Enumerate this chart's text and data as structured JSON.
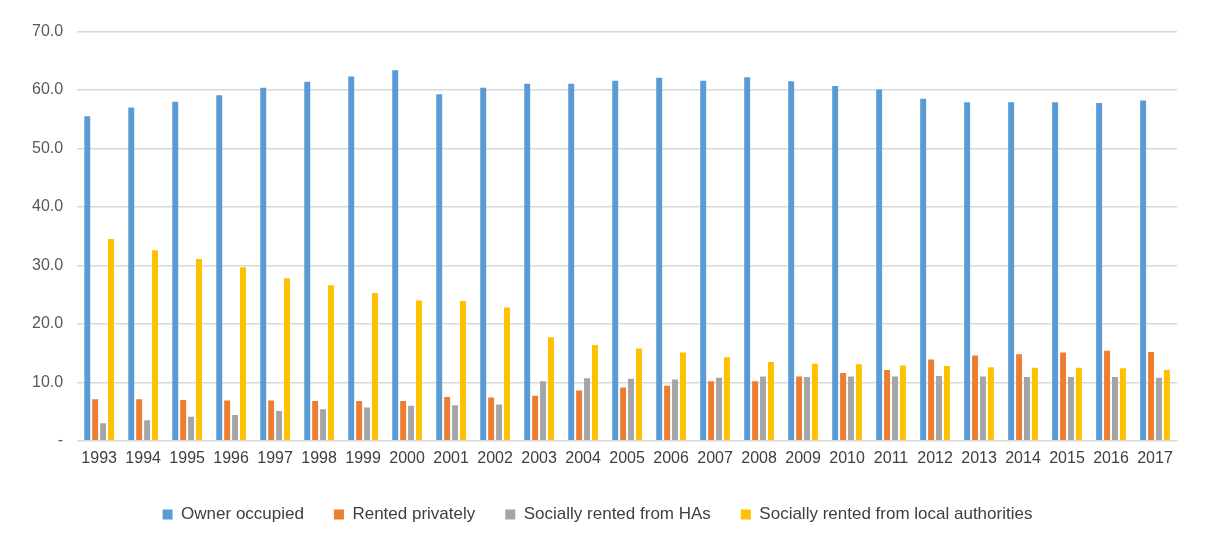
{
  "chart_data": {
    "type": "bar",
    "categories": [
      "1993",
      "1994",
      "1995",
      "1996",
      "1997",
      "1998",
      "1999",
      "2000",
      "2001",
      "2002",
      "2003",
      "2004",
      "2005",
      "2006",
      "2007",
      "2008",
      "2009",
      "2010",
      "2011",
      "2012",
      "2013",
      "2014",
      "2015",
      "2016",
      "2017"
    ],
    "series": [
      {
        "name": "Owner occupied",
        "color": "#5b9bd5",
        "values": [
          55.5,
          57.0,
          58.0,
          59.1,
          60.4,
          61.4,
          62.3,
          63.4,
          59.3,
          60.4,
          61.1,
          61.1,
          61.6,
          62.1,
          61.6,
          62.2,
          61.5,
          60.7,
          60.1,
          58.5,
          57.9,
          57.9,
          57.9,
          57.8,
          58.2
        ]
      },
      {
        "name": "Rented privately",
        "color": "#ed7d31",
        "values": [
          7.1,
          7.1,
          7.0,
          6.9,
          6.9,
          6.8,
          6.8,
          6.8,
          7.5,
          7.4,
          7.7,
          8.6,
          9.1,
          9.4,
          10.2,
          10.2,
          11.0,
          11.6,
          12.1,
          13.9,
          14.6,
          14.8,
          15.1,
          15.4,
          15.2
        ]
      },
      {
        "name": "Socially rented from HAs",
        "color": "#a5a5a5",
        "values": [
          3.0,
          3.5,
          4.1,
          4.4,
          5.1,
          5.4,
          5.7,
          6.0,
          6.1,
          6.2,
          10.2,
          10.7,
          10.6,
          10.5,
          10.8,
          11.0,
          10.9,
          11.0,
          11.0,
          11.1,
          11.0,
          10.9,
          10.9,
          10.9,
          10.8
        ]
      },
      {
        "name": "Socially rented from local authorities",
        "color": "#ffc000",
        "values": [
          34.5,
          32.6,
          31.1,
          29.7,
          27.8,
          26.6,
          25.3,
          24.0,
          23.9,
          22.8,
          17.7,
          16.4,
          15.8,
          15.1,
          14.3,
          13.5,
          13.2,
          13.1,
          12.9,
          12.8,
          12.6,
          12.5,
          12.5,
          12.4,
          12.1
        ]
      }
    ],
    "ylim": [
      0,
      70
    ],
    "yticks": [
      {
        "value": 0,
        "label": "-"
      },
      {
        "value": 10,
        "label": "10.0"
      },
      {
        "value": 20,
        "label": "20.0"
      },
      {
        "value": 30,
        "label": "30.0"
      },
      {
        "value": 40,
        "label": "40.0"
      },
      {
        "value": 50,
        "label": "50.0"
      },
      {
        "value": 60,
        "label": "60.0"
      },
      {
        "value": 70,
        "label": "70.0"
      }
    ],
    "grid": "y",
    "legend": "bottom"
  }
}
